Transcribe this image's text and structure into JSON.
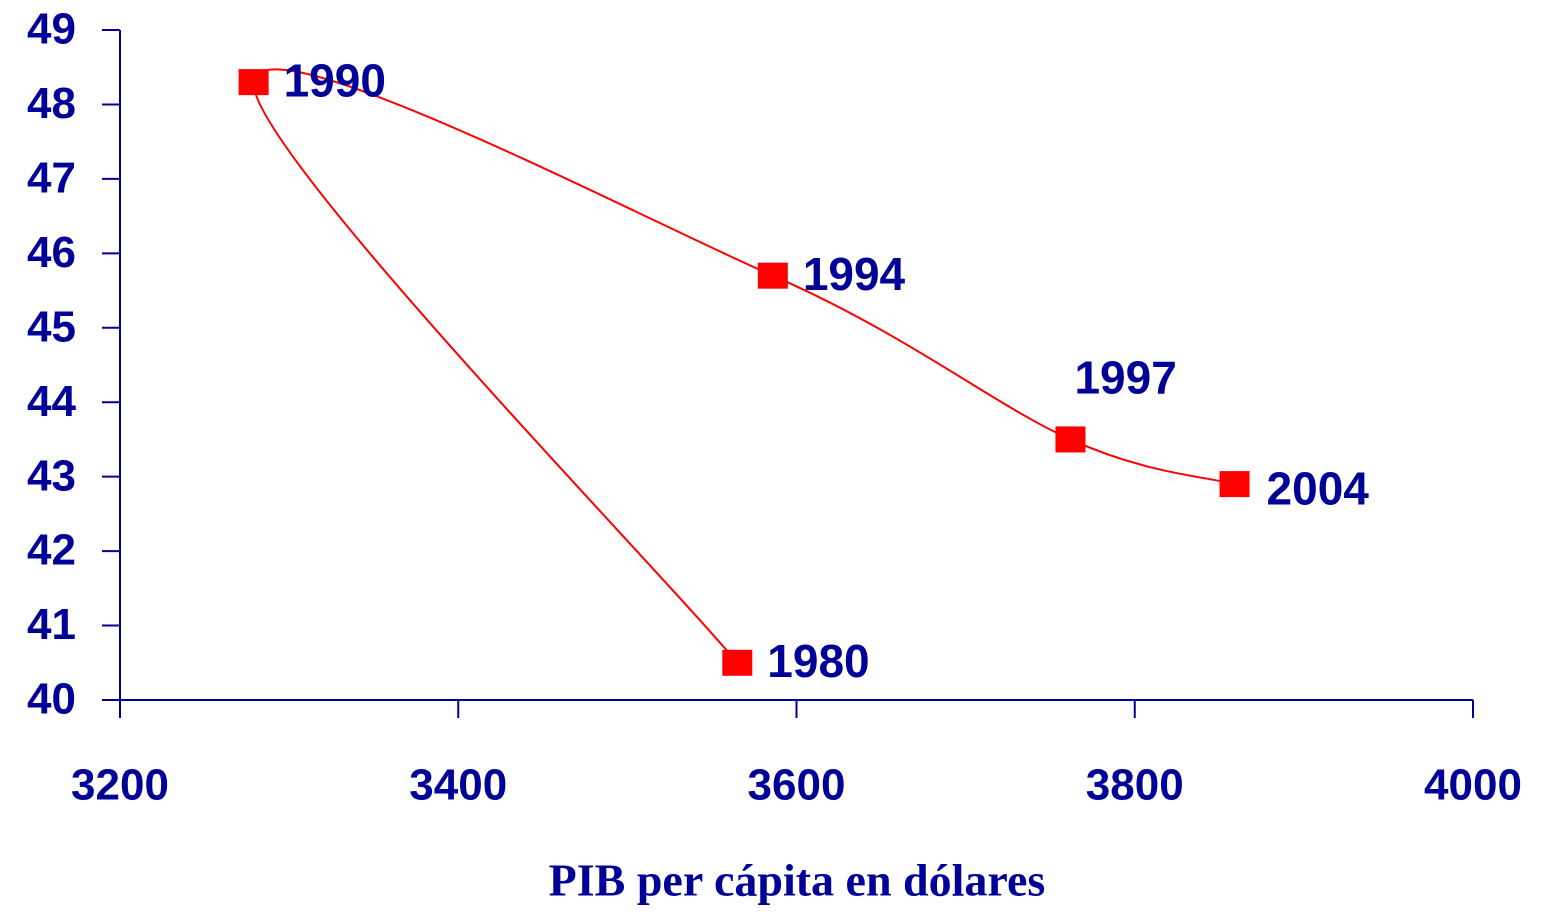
{
  "chart_data": {
    "type": "scatter",
    "x_label": "PIB per cápita en dólares",
    "x": [
      3565,
      3279,
      3586,
      3762,
      3859
    ],
    "values": [
      40.5,
      48.3,
      45.7,
      43.5,
      42.9
    ],
    "labels": [
      "1980",
      "1990",
      "1994",
      "1997",
      "2004"
    ],
    "color": "#ff0000",
    "line_color": "#ff0000",
    "axis_color": "#000099",
    "xlim": [
      3200,
      4000
    ],
    "xticks": [
      3200,
      3400,
      3600,
      3800,
      4000
    ],
    "ylim": [
      40,
      49
    ],
    "yticks": [
      40,
      41,
      42,
      43,
      44,
      45,
      46,
      47,
      48,
      49
    ],
    "grid": false
  }
}
